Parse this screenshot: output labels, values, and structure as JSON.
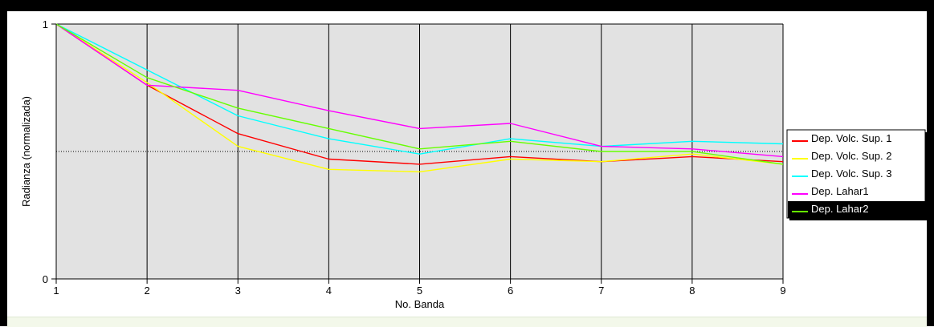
{
  "chart_data": {
    "type": "line",
    "xlabel": "No. Banda",
    "ylabel": "Radianza (normalizada)",
    "x": [
      1,
      2,
      3,
      4,
      5,
      6,
      7,
      8,
      9
    ],
    "xlim": [
      1,
      9
    ],
    "ylim": [
      0,
      1
    ],
    "yticks": [
      0,
      1
    ],
    "grid": "vertical",
    "reference_line": 0.5,
    "legend_position": "right",
    "series": [
      {
        "name": "Dep. Volc. Sup. 1",
        "color": "#ff0000",
        "values": [
          1.0,
          0.76,
          0.57,
          0.47,
          0.45,
          0.48,
          0.46,
          0.48,
          0.46
        ]
      },
      {
        "name": "Dep. Volc. Sup. 2",
        "color": "#ffff00",
        "values": [
          1.0,
          0.77,
          0.52,
          0.43,
          0.42,
          0.47,
          0.46,
          0.49,
          0.45
        ]
      },
      {
        "name": "Dep. Volc. Sup. 3",
        "color": "#00ffff",
        "values": [
          1.0,
          0.82,
          0.64,
          0.55,
          0.49,
          0.55,
          0.52,
          0.54,
          0.53
        ]
      },
      {
        "name": "Dep. Lahar1",
        "color": "#ff00ff",
        "values": [
          1.0,
          0.76,
          0.74,
          0.66,
          0.59,
          0.61,
          0.52,
          0.51,
          0.48
        ]
      },
      {
        "name": "Dep. Lahar2",
        "color": "#66ff00",
        "values": [
          1.0,
          0.79,
          0.67,
          0.59,
          0.51,
          0.54,
          0.5,
          0.5,
          0.45
        ]
      }
    ],
    "selected_legend_index": 4
  }
}
